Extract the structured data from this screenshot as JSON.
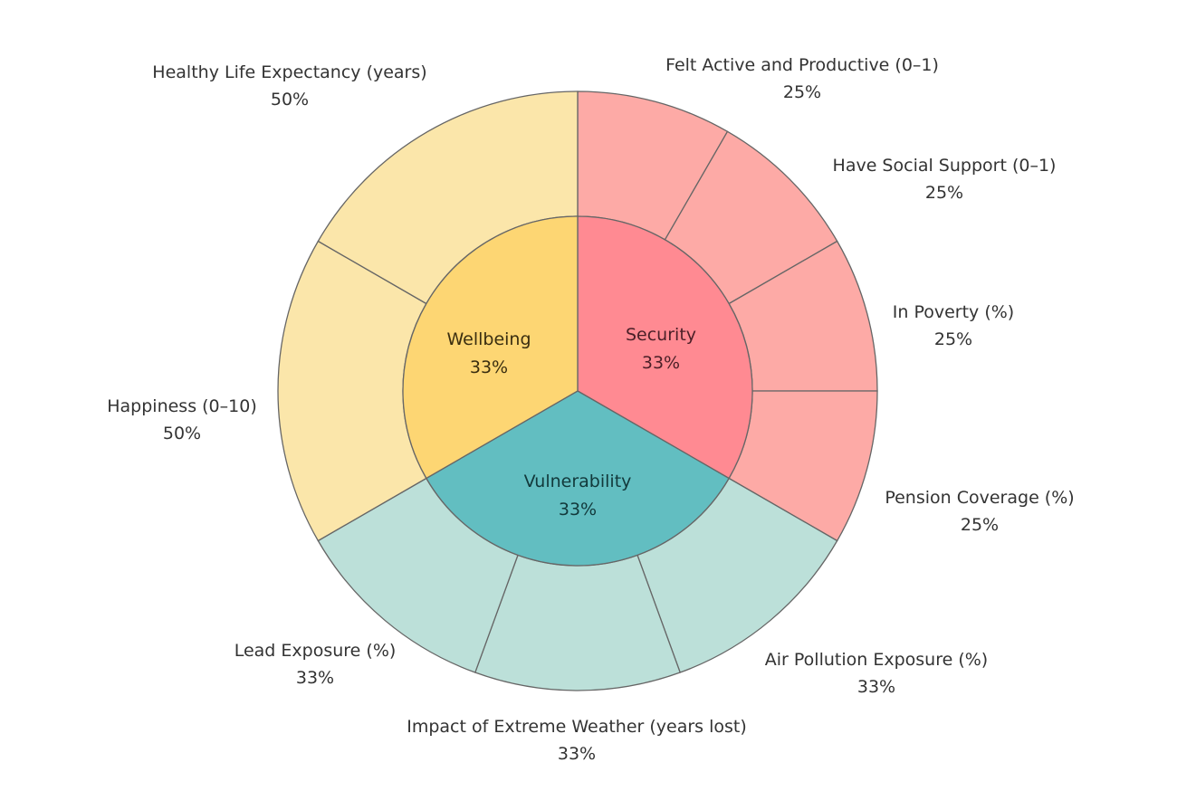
{
  "chart_data": {
    "type": "sunburst",
    "inner": [
      {
        "name": "Security",
        "share": "33%",
        "value": 33.3,
        "color": "#FF8A92"
      },
      {
        "name": "Vulnerability",
        "share": "33%",
        "value": 33.3,
        "color": "#62BEC1"
      },
      {
        "name": "Wellbeing",
        "share": "33%",
        "value": 33.3,
        "color": "#FDD673"
      }
    ],
    "outer": [
      {
        "name": "Felt Active and Productive (0–1)",
        "share": "25%",
        "parent": 0,
        "value": 25,
        "color": "#FDAAA6"
      },
      {
        "name": "Have Social Support (0–1)",
        "share": "25%",
        "parent": 0,
        "value": 25,
        "color": "#FDAAA6"
      },
      {
        "name": "In Poverty (%)",
        "share": "25%",
        "parent": 0,
        "value": 25,
        "color": "#FDAAA6"
      },
      {
        "name": "Pension Coverage (%)",
        "share": "25%",
        "parent": 0,
        "value": 25,
        "color": "#FDAAA6"
      },
      {
        "name": "Air Pollution Exposure (%)",
        "share": "33%",
        "parent": 1,
        "value": 33.3,
        "color": "#BCE0D9"
      },
      {
        "name": "Impact of Extreme Weather (years lost)",
        "share": "33%",
        "parent": 1,
        "value": 33.3,
        "color": "#BCE0D9"
      },
      {
        "name": "Lead Exposure (%)",
        "share": "33%",
        "parent": 1,
        "value": 33.3,
        "color": "#BCE0D9"
      },
      {
        "name": "Happiness (0–10)",
        "share": "50%",
        "parent": 2,
        "value": 50,
        "color": "#FBE6AA"
      },
      {
        "name": "Healthy Life Expectancy (years)",
        "share": "50%",
        "parent": 2,
        "value": 50,
        "color": "#FBE6AA"
      }
    ]
  }
}
